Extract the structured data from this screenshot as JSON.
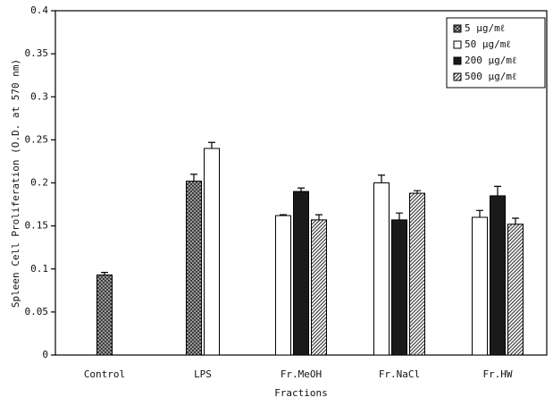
{
  "chart_data": {
    "type": "bar",
    "y_label": "Spleen Cell Proliferation (O.D. at 570 nm)",
    "x_label": "Fractions",
    "categories": [
      "Control",
      "LPS",
      "Fr.MeOH",
      "Fr.NaCl",
      "Fr.HW"
    ],
    "series": [
      {
        "name": "5  μg/mℓ",
        "color": "#555",
        "pattern": "crosshatch",
        "values": [
          0.093,
          0.202,
          null,
          null,
          null
        ],
        "errors": [
          0.003,
          0.008,
          null,
          null,
          null
        ]
      },
      {
        "name": "50  μg/mℓ",
        "color": "#ffffff",
        "pattern": "solid",
        "values": [
          null,
          0.24,
          0.162,
          0.2,
          0.16
        ],
        "errors": [
          null,
          0.007,
          0.001,
          0.009,
          0.008
        ]
      },
      {
        "name": "200  μg/mℓ",
        "color": "#1a1a1a",
        "pattern": "solid",
        "values": [
          null,
          null,
          0.19,
          0.157,
          0.185
        ],
        "errors": [
          null,
          null,
          0.004,
          0.008,
          0.011
        ]
      },
      {
        "name": "500  μg/mℓ",
        "color": "#444",
        "pattern": "diagonal",
        "values": [
          null,
          null,
          0.157,
          0.188,
          0.152
        ],
        "errors": [
          null,
          null,
          0.006,
          0.003,
          0.007
        ]
      }
    ],
    "ylim": [
      0,
      0.4
    ],
    "yticks": [
      0,
      0.05,
      0.1,
      0.15,
      0.2,
      0.25,
      0.3,
      0.35,
      0.4
    ],
    "legend": "upper right"
  }
}
